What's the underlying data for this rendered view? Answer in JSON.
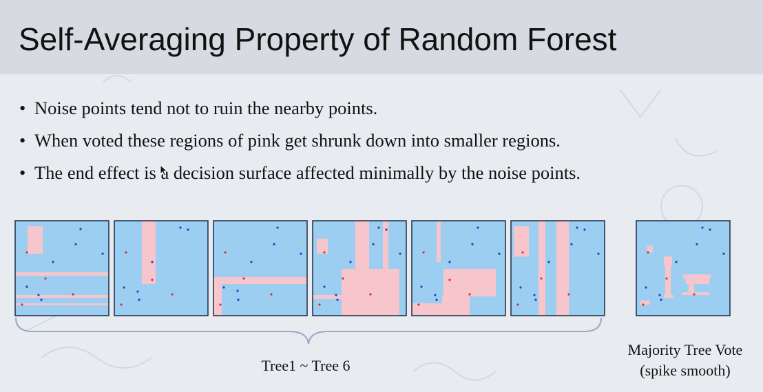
{
  "slide": {
    "title": "Self-Averaging Property of Random Forest",
    "bullets": [
      "Noise points tend not to ruin the nearby points.",
      "When voted these regions of pink get shrunk down into smaller regions.",
      "The end effect is a decision surface affected minimally by the noise points."
    ],
    "bullet_marker": "•",
    "caption_trees": "Tree1 ~ Tree 6",
    "caption_vote_line1": "Majority Tree Vote",
    "caption_vote_line2": "(spike smooth)"
  },
  "colors": {
    "background": "#e8ecf1",
    "panel_blue": "#9ccef2",
    "region_pink": "#f6c6cc",
    "panel_border": "#1a2a44",
    "point_blue": "#2440c8",
    "point_red": "#d83030",
    "bracket": "#9aa6c4"
  },
  "icons": {
    "cursor": "mouse-pointer-icon"
  }
}
